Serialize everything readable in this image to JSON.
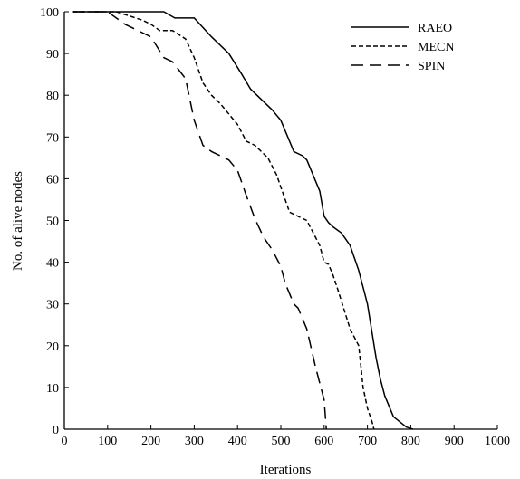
{
  "chart_data": {
    "type": "line",
    "title": "",
    "xlabel": "Iterations",
    "ylabel": "No. of alive nodes",
    "xlim": [
      0,
      1000
    ],
    "ylim": [
      0,
      100
    ],
    "xticks": [
      0,
      100,
      200,
      300,
      400,
      500,
      600,
      700,
      800,
      900,
      1000
    ],
    "yticks": [
      0,
      10,
      20,
      30,
      40,
      50,
      60,
      70,
      80,
      90,
      100
    ],
    "grid": false,
    "legend_position": "top-right",
    "series": [
      {
        "name": "RAEO",
        "dash": "solid",
        "x": [
          20,
          100,
          230,
          255,
          270,
          300,
          340,
          380,
          410,
          430,
          480,
          500,
          520,
          530,
          550,
          560,
          590,
          600,
          610,
          620,
          640,
          660,
          680,
          700,
          720,
          730,
          740,
          760,
          790,
          805
        ],
        "y": [
          100,
          100,
          100,
          98.5,
          98.5,
          98.5,
          94,
          90,
          85,
          81.5,
          76.5,
          74,
          69,
          66.5,
          65.5,
          64.5,
          57,
          51,
          49.5,
          48.5,
          47,
          44,
          38,
          30,
          17,
          12,
          8,
          3,
          0.5,
          0
        ]
      },
      {
        "name": "MECN",
        "dash": "short-dash",
        "x": [
          20,
          120,
          180,
          200,
          220,
          250,
          280,
          300,
          320,
          340,
          360,
          400,
          420,
          440,
          470,
          490,
          510,
          520,
          530,
          560,
          580,
          590,
          600,
          610,
          620,
          630,
          660,
          680,
          690,
          700,
          710,
          715
        ],
        "y": [
          100,
          100,
          98,
          97,
          95.5,
          95.5,
          93.5,
          89,
          83,
          80,
          78,
          73,
          69,
          68,
          65,
          61,
          55,
          52,
          51.5,
          50,
          46,
          44,
          40,
          39.5,
          37,
          34,
          24,
          20,
          10,
          5,
          2,
          0
        ]
      },
      {
        "name": "SPIN",
        "dash": "long-dash",
        "x": [
          20,
          100,
          140,
          200,
          230,
          250,
          280,
          300,
          320,
          340,
          360,
          380,
          400,
          420,
          440,
          460,
          480,
          500,
          510,
          530,
          540,
          560,
          580,
          590,
          600,
          605
        ],
        "y": [
          100,
          100,
          97,
          94,
          89,
          88,
          84,
          74,
          68,
          66.5,
          65.5,
          64.5,
          62,
          56,
          50.5,
          46,
          43,
          39,
          35,
          30,
          29,
          24,
          15,
          11,
          7,
          0
        ]
      }
    ]
  }
}
